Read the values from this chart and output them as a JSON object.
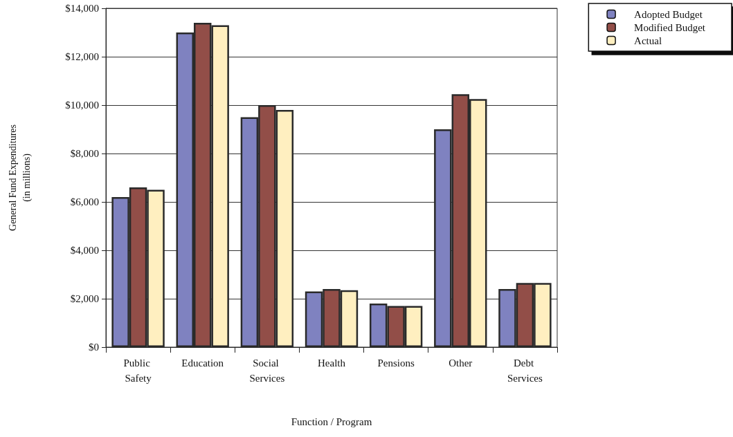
{
  "chart_data": {
    "type": "bar",
    "xlabel": "Function / Program",
    "ylabel": "General Fund Expenditures\n(in millions)",
    "categories": [
      "Public Safety",
      "Education",
      "Social Services",
      "Health",
      "Pensions",
      "Other",
      "Debt Services"
    ],
    "series": [
      {
        "name": "Adopted Budget",
        "color": "#7f82c0",
        "values": [
          6200,
          13000,
          9500,
          2300,
          1800,
          9000,
          2400
        ]
      },
      {
        "name": "Modified Budget",
        "color": "#924e48",
        "values": [
          6600,
          13400,
          10000,
          2400,
          1700,
          10450,
          2650
        ]
      },
      {
        "name": "Actual",
        "color": "#ffefc0",
        "values": [
          6500,
          13300,
          9800,
          2350,
          1700,
          10250,
          2650
        ]
      }
    ],
    "ylim": [
      0,
      14000
    ],
    "yticks": [
      {
        "value": 0,
        "label": "$0"
      },
      {
        "value": 2000,
        "label": "$2,000"
      },
      {
        "value": 4000,
        "label": "$4,000"
      },
      {
        "value": 6000,
        "label": "$6,000"
      },
      {
        "value": 8000,
        "label": "$8,000"
      },
      {
        "value": 10000,
        "label": "$10,000"
      },
      {
        "value": 12000,
        "label": "$12,000"
      },
      {
        "value": 14000,
        "label": "$14,000"
      }
    ],
    "grid": "y",
    "legend": "top right"
  }
}
